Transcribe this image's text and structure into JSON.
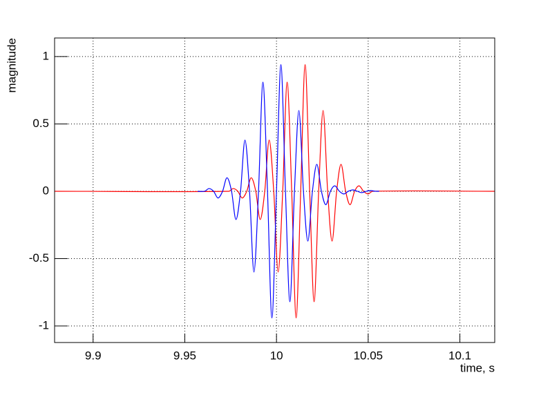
{
  "chart_data": {
    "type": "line",
    "x_label": "time, s",
    "y_label": "magnitude",
    "xlim": [
      9.879,
      10.119
    ],
    "ylim": [
      -1.123,
      1.138
    ],
    "xticks": [
      9.9,
      9.95,
      10,
      10.05,
      10.1
    ],
    "yticks": [
      -1,
      -0.5,
      0,
      0.5,
      1
    ],
    "grid": true,
    "series": [
      {
        "color": "#ff0000",
        "x": [
          9.879,
          9.974,
          9.9764,
          9.9789,
          9.9813,
          9.9838,
          9.9862,
          9.9887,
          9.9911,
          9.9936,
          9.996,
          9.9985,
          10.0009,
          10.0034,
          10.0058,
          10.0083,
          10.0107,
          10.0132,
          10.0156,
          10.0181,
          10.0205,
          10.023,
          10.0254,
          10.0279,
          10.0303,
          10.0328,
          10.0352,
          10.0377,
          10.0401,
          10.0426,
          10.045,
          10.0475,
          10.0499,
          10.0524,
          10.119
        ],
        "values": [
          0,
          0,
          0.02,
          0,
          -0.05,
          0,
          0.1,
          0,
          -0.21,
          0,
          0.38,
          0,
          -0.6,
          0,
          0.81,
          0,
          -0.94,
          0,
          0.94,
          0,
          -0.82,
          0,
          0.6,
          0,
          -0.37,
          0,
          0.2,
          0,
          -0.1,
          0,
          0.04,
          0,
          -0.02,
          0,
          0
        ]
      },
      {
        "color": "#0000ff",
        "x": [
          9.957,
          9.9608,
          9.9632,
          9.9657,
          9.9681,
          9.9706,
          9.973,
          9.9755,
          9.9779,
          9.9804,
          9.9828,
          9.9853,
          9.9877,
          9.9902,
          9.9926,
          9.9951,
          9.9975,
          10.0,
          10.0024,
          10.0049,
          10.0073,
          10.0098,
          10.0122,
          10.0147,
          10.0171,
          10.0196,
          10.022,
          10.0245,
          10.0269,
          10.0294,
          10.0318,
          10.0343,
          10.0367,
          10.0392,
          10.0416,
          10.0441,
          10.0465,
          10.049,
          10.0514,
          10.0539,
          10.056
        ],
        "values": [
          0,
          0,
          0.02,
          0,
          -0.05,
          0,
          0.1,
          0,
          -0.21,
          0,
          0.38,
          0,
          -0.6,
          0,
          0.81,
          0,
          -0.94,
          0,
          0.94,
          0,
          -0.82,
          0,
          0.6,
          0,
          -0.37,
          0,
          0.2,
          0,
          -0.1,
          0,
          0.04,
          0,
          -0.02,
          0,
          0.01,
          0,
          -0.01,
          0,
          0.005,
          0,
          0
        ]
      }
    ]
  }
}
